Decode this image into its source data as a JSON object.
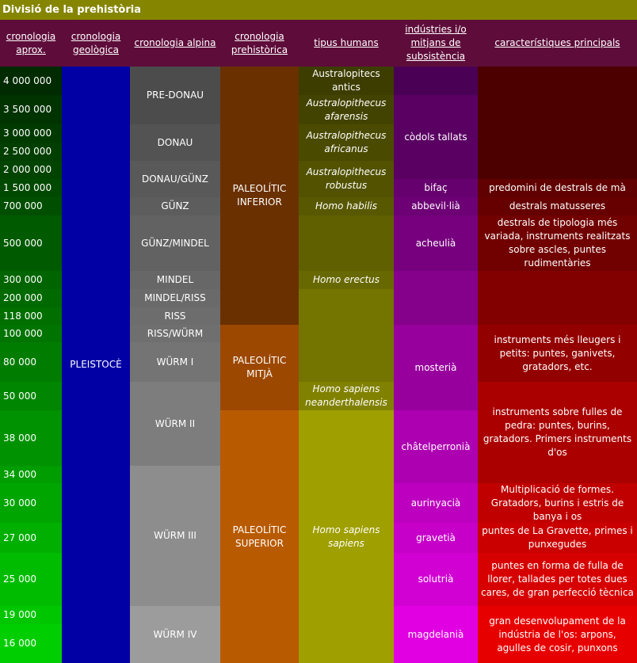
{
  "header": {
    "title": "Divisió de la prehistòria"
  },
  "table": {
    "columns": [
      "cronologia aprox.",
      "cronologia geològica",
      "cronologia alpina",
      "cronologia prehistòrica",
      "tipus humans",
      "indústries i/o mitjans de subsistència",
      "característiques principals"
    ],
    "cronologia": [
      "4 000 000",
      "3 500 000",
      "3 000 000",
      "2 500 000",
      "2 000 000",
      "1 500 000",
      "700 000",
      "500 000",
      "300 000",
      "200 000",
      "118 000",
      "100 000",
      "80 000",
      "50 000",
      "38 000",
      "34 000",
      "30 000",
      "27 000",
      "25 000",
      "19 000",
      "16 000"
    ],
    "geologica": [
      "PLEISTOCÈ"
    ],
    "alpina": [
      "PRE-DONAU",
      "DONAU",
      "DONAU/GÜNZ",
      "GÜNZ",
      "GÜNZ/MINDEL",
      "MINDEL",
      "MINDEL/RISS",
      "RISS",
      "RISS/WÜRM",
      "WÜRM I",
      "WÜRM II",
      "WÜRM III",
      "WÜRM IV"
    ],
    "prehistorica": [
      "PALEOLÍTIC INFERIOR",
      "PALEOLÍTIC MITJÀ",
      "PALEOLÍTIC SUPERIOR"
    ],
    "humans": [
      "Australopitecs antics",
      "Australopithecus afarensis",
      "Australopithecus africanus",
      "Australopithecus robustus",
      "Homo habilis",
      "Homo erectus",
      "Homo sapiens neanderthalensis",
      "Homo sapiens sapiens"
    ],
    "industries": [
      "còdols tallats",
      "bifaç",
      "abbevil·lià",
      "acheulià",
      "mosterià",
      "châtelperronià",
      "aurinyacià",
      "gravetià",
      "solutrià",
      "magdelanià"
    ],
    "caracteristiques": [
      "predomini de destrals de mà",
      "destrals matusseres",
      "destrals de tipologia més variada, instruments realitzats sobre ascles, puntes rudimentàries",
      "instruments més lleugers i petits: puntes, ganivets, gratadors, etc.",
      "instruments sobre fulles de pedra: puntes, burins, gratadors. Primers instruments d'os",
      "Multiplicació de formes. Gratadors, burins i estris de banya i os",
      "puntes de La Gravette, primes i punxegudes",
      "puntes en forma de fulla de llorer, tallades per totes dues cares, de gran perfecció tècnica",
      "gran desenvolupament de la indústria de l'os: arpons, agulles de cosir, punxons"
    ]
  }
}
